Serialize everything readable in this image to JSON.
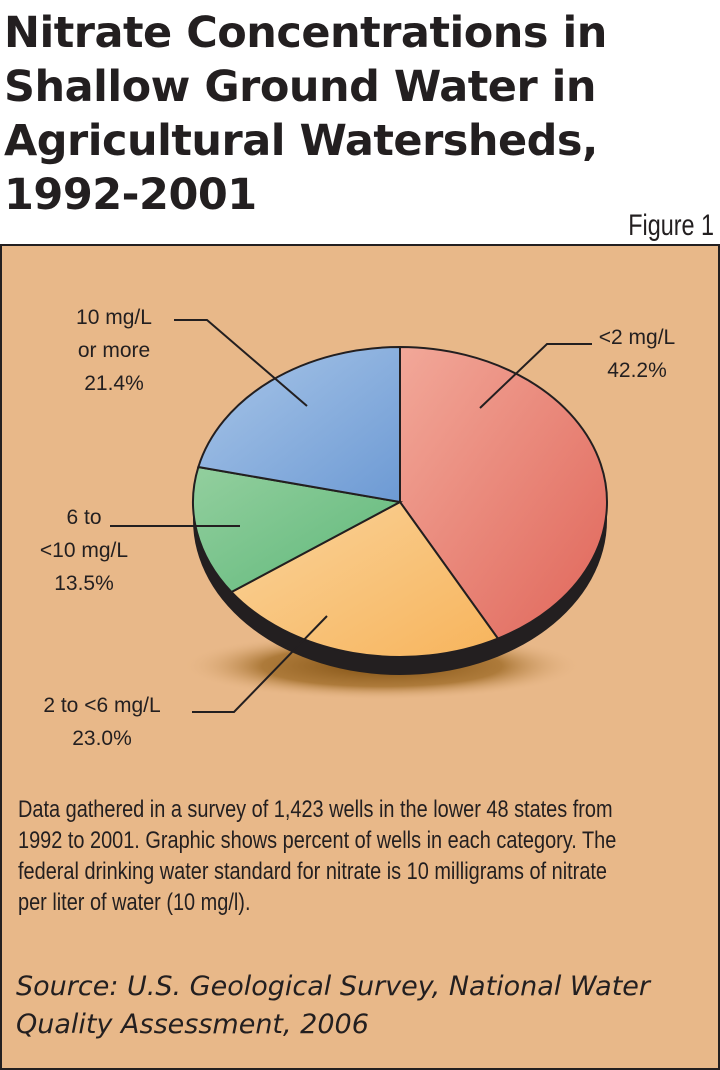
{
  "title_lines": [
    "Nitrate Concentrations in",
    "Shallow Ground Water in",
    "Agricultural Watersheds,",
    "1992-2001"
  ],
  "figure_label": "Figure 1",
  "chart_data": {
    "type": "pie",
    "title": "Nitrate Concentrations in Shallow Ground Water in Agricultural Watersheds, 1992-2001",
    "slices": [
      {
        "label_lines": [
          "<2 mg/L",
          "42.2%"
        ],
        "value": 42.2,
        "color": "#e0665a",
        "highlight": "#f2a899"
      },
      {
        "label_lines": [
          "2 to <6 mg/L",
          "23.0%"
        ],
        "value": 23.0,
        "color": "#f7b45c",
        "highlight": "#fad39a"
      },
      {
        "label_lines": [
          "6 to",
          "<10 mg/L",
          "13.5%"
        ],
        "value": 13.5,
        "color": "#5fb87a",
        "highlight": "#93cf9e"
      },
      {
        "label_lines": [
          "10 mg/L",
          "or more",
          "21.4%"
        ],
        "value": 21.4,
        "color": "#6d9ad4",
        "highlight": "#a9c6e8"
      }
    ],
    "colors": {
      "panel_background": "#e8b889",
      "pie_side": "#231f20",
      "shadow": "#8a5a14"
    }
  },
  "description_lines": [
    "Data gathered in a survey of 1,423 wells in the lower 48 states from",
    "1992 to 2001. Graphic shows percent of wells in each category. The",
    "federal drinking water standard for nitrate is 10 milligrams of nitrate",
    "per liter of water (10 mg/l)."
  ],
  "source_lines": [
    "Source: U.S. Geological Survey, National Water",
    "Quality Assessment, 2006"
  ]
}
